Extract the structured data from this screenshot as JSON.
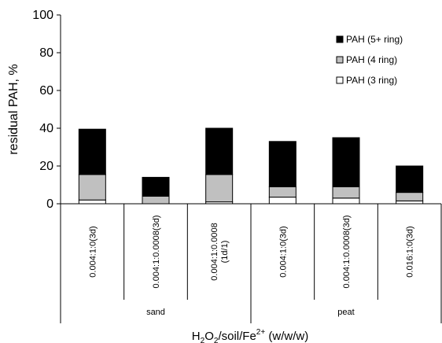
{
  "chart_data": {
    "type": "bar",
    "stacked": true,
    "categories": [
      "0.004:1:0(3d)",
      "0.004:1:0.0008(3d)",
      "0.004:1:0.0008\n(1d/1)",
      "0.004:1:0(3d)",
      "0.004:1:0.0008(3d)",
      "0.016:1:0(3d)"
    ],
    "groups": [
      {
        "label": "sand",
        "span": [
          0,
          2
        ]
      },
      {
        "label": "peat",
        "span": [
          3,
          5
        ]
      }
    ],
    "series": [
      {
        "name": "PAH (3 ring)",
        "color": "#ffffff",
        "values": [
          2,
          0,
          1,
          3.5,
          3,
          1.5
        ]
      },
      {
        "name": "PAH (4 ring)",
        "color": "#c0c0c0",
        "values": [
          13.5,
          4,
          14.5,
          5.5,
          6,
          4.5
        ]
      },
      {
        "name": "PAH (5+ ring)",
        "color": "#000000",
        "values": [
          24,
          10,
          24.5,
          24,
          26,
          14
        ]
      }
    ],
    "ylabel": "residual PAH, %",
    "xlabel": {
      "pre": "H",
      "sub1": "2",
      "mid1": "O",
      "sub2": "2",
      "mid2": "/soil/Fe",
      "sup": "2+",
      "post": " (w/w/w)"
    },
    "ylim": [
      0,
      100
    ],
    "yticks": [
      0,
      20,
      40,
      60,
      80,
      100
    ],
    "legend_position": "top-right",
    "grid": false
  }
}
